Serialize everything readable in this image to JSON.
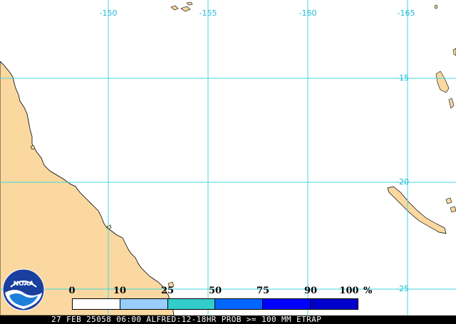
{
  "map": {
    "lon_labels": [
      "-150",
      "-155",
      "-160",
      "-165"
    ],
    "lat_labels": [
      "-15",
      "-20",
      "-25"
    ],
    "colors": {
      "land": "#fad8a0",
      "ocean": "#ffffff",
      "grid": "#40d8e0",
      "coast": "#000000"
    }
  },
  "legend": {
    "ticks": [
      "0",
      "10",
      "25",
      "50",
      "75",
      "90",
      "100"
    ],
    "unit": "%",
    "bin_colors": [
      "#ffffff",
      "#99ccff",
      "#33cccc",
      "#0066ff",
      "#0000ff",
      "#0000cc"
    ]
  },
  "status": {
    "text": "27 FEB 25058 06:00 ALFRED:12-18HR PROB >= 100 MM ETRAP"
  },
  "logo": {
    "text": "NOAA"
  }
}
